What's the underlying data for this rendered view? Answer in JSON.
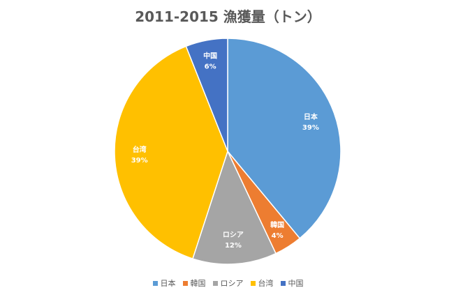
{
  "chart_data": {
    "type": "pie",
    "title": "2011-2015 漁獲量（トン）",
    "categories": [
      "日本",
      "韓国",
      "ロシア",
      "台湾",
      "中国"
    ],
    "values": [
      39,
      4,
      12,
      39,
      6
    ],
    "percent_labels": [
      "39%",
      "4%",
      "12%",
      "39%",
      "6%"
    ],
    "colors": [
      "#5B9BD5",
      "#ED7D31",
      "#A5A5A5",
      "#FFC000",
      "#4472C4"
    ],
    "legend_position": "bottom",
    "start_angle": "12 o'clock",
    "direction": "clockwise"
  }
}
